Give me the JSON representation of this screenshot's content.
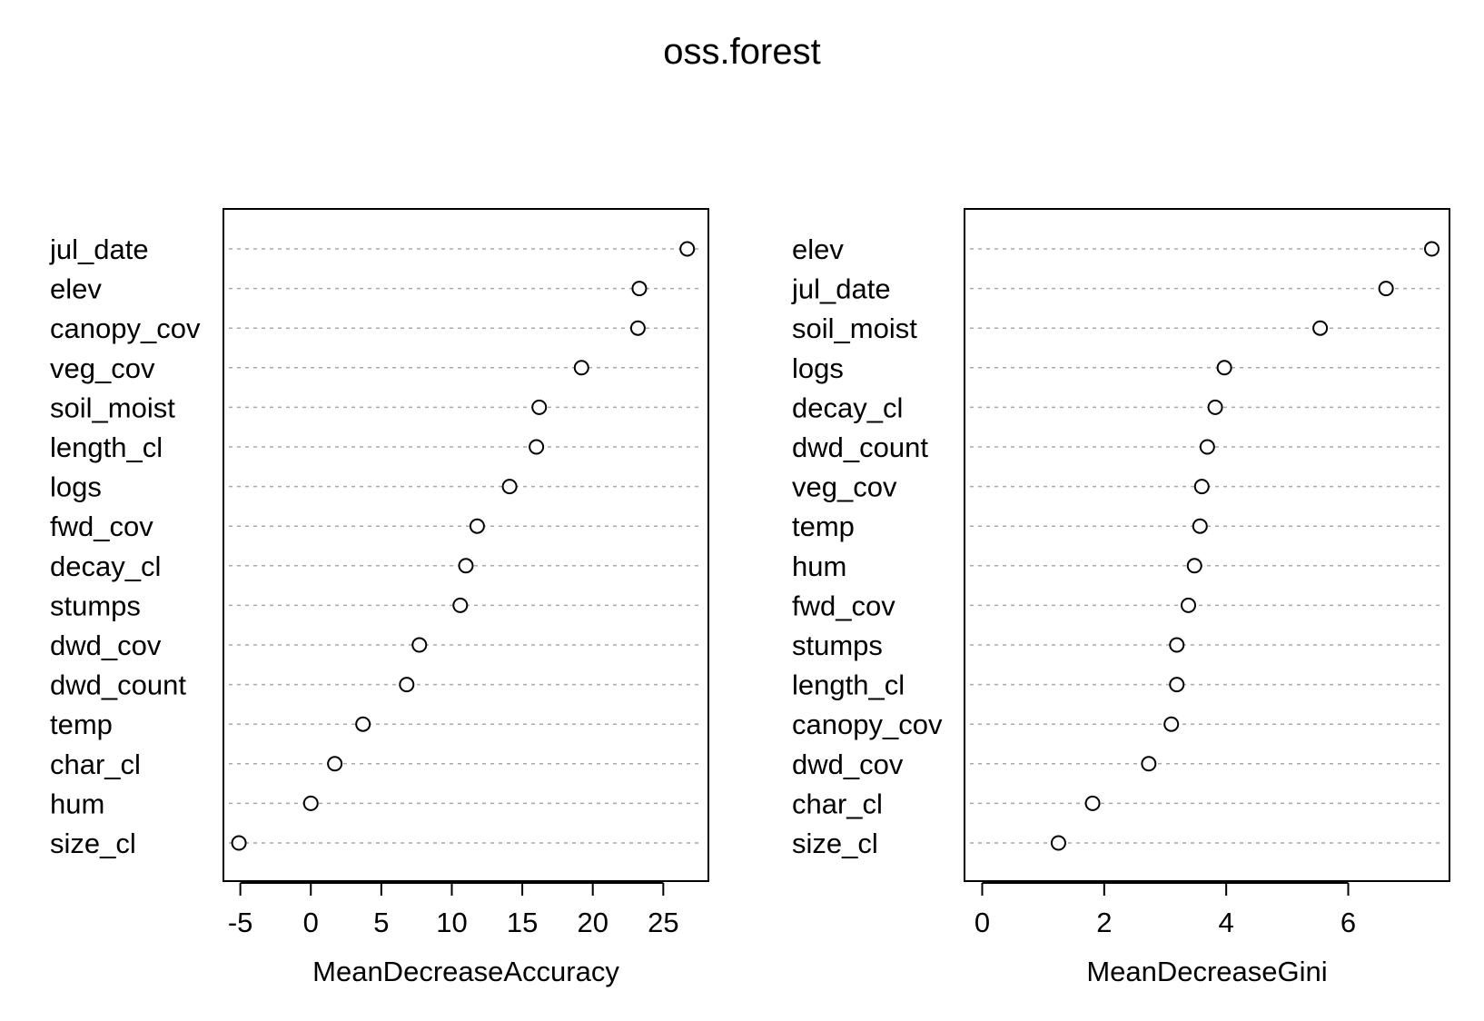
{
  "title": "oss.forest",
  "chart_data": [
    {
      "type": "scatter",
      "style": "dotchart",
      "xlabel": "MeanDecreaseAccuracy",
      "xlim": [
        -6.2,
        28.2
      ],
      "xticks": [
        -5,
        0,
        5,
        10,
        15,
        20,
        25
      ],
      "grid": false,
      "variables": [
        "jul_date",
        "elev",
        "canopy_cov",
        "veg_cov",
        "soil_moist",
        "length_cl",
        "logs",
        "fwd_cov",
        "decay_cl",
        "stumps",
        "dwd_cov",
        "dwd_count",
        "temp",
        "char_cl",
        "hum",
        "size_cl"
      ],
      "values": [
        26.7,
        23.3,
        23.2,
        19.2,
        16.2,
        16.0,
        14.1,
        11.8,
        11.0,
        10.6,
        7.7,
        6.8,
        3.7,
        1.7,
        0.0,
        -5.1
      ]
    },
    {
      "type": "scatter",
      "style": "dotchart",
      "xlabel": "MeanDecreaseGini",
      "xlim": [
        -0.29,
        7.66
      ],
      "xticks": [
        0,
        2,
        4,
        6
      ],
      "grid": false,
      "variables": [
        "elev",
        "jul_date",
        "soil_moist",
        "logs",
        "decay_cl",
        "dwd_count",
        "veg_cov",
        "temp",
        "hum",
        "fwd_cov",
        "stumps",
        "length_cl",
        "canopy_cov",
        "dwd_cov",
        "char_cl",
        "size_cl"
      ],
      "values": [
        7.37,
        6.62,
        5.54,
        3.97,
        3.82,
        3.69,
        3.6,
        3.57,
        3.48,
        3.38,
        3.19,
        3.19,
        3.1,
        2.73,
        1.81,
        1.25
      ]
    }
  ]
}
